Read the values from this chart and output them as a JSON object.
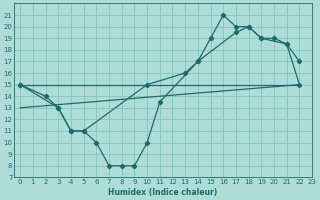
{
  "xlabel": "Humidex (Indice chaleur)",
  "bg_color": "#aeddd8",
  "grid_color": "#7fc8c0",
  "line_color": "#1a6b6b",
  "xlim": [
    -0.5,
    23
  ],
  "ylim": [
    7,
    22
  ],
  "xticks": [
    0,
    1,
    2,
    3,
    4,
    5,
    6,
    7,
    8,
    9,
    10,
    11,
    12,
    13,
    14,
    15,
    16,
    17,
    18,
    19,
    20,
    21,
    22,
    23
  ],
  "yticks": [
    7,
    8,
    9,
    10,
    11,
    12,
    13,
    14,
    15,
    16,
    17,
    18,
    19,
    20,
    21
  ],
  "line1_x": [
    0,
    2,
    3,
    4,
    5,
    6,
    7,
    8,
    9,
    10,
    11,
    14,
    15,
    16,
    17,
    18,
    19,
    20,
    21,
    22
  ],
  "line1_y": [
    15,
    14,
    13,
    11,
    11,
    10,
    8,
    8,
    8,
    10,
    13.5,
    17,
    19,
    21,
    20,
    20,
    19,
    19,
    18.5,
    17
  ],
  "line2_x": [
    0,
    3,
    4,
    5,
    10,
    13,
    14,
    17,
    18,
    19,
    21,
    22
  ],
  "line2_y": [
    15,
    13,
    11,
    11,
    15,
    16,
    17,
    19.5,
    20,
    19,
    18.5,
    15
  ],
  "line3_x": [
    0,
    22
  ],
  "line3_y": [
    15,
    15
  ],
  "line4_x": [
    0,
    22
  ],
  "line4_y": [
    13,
    15
  ]
}
